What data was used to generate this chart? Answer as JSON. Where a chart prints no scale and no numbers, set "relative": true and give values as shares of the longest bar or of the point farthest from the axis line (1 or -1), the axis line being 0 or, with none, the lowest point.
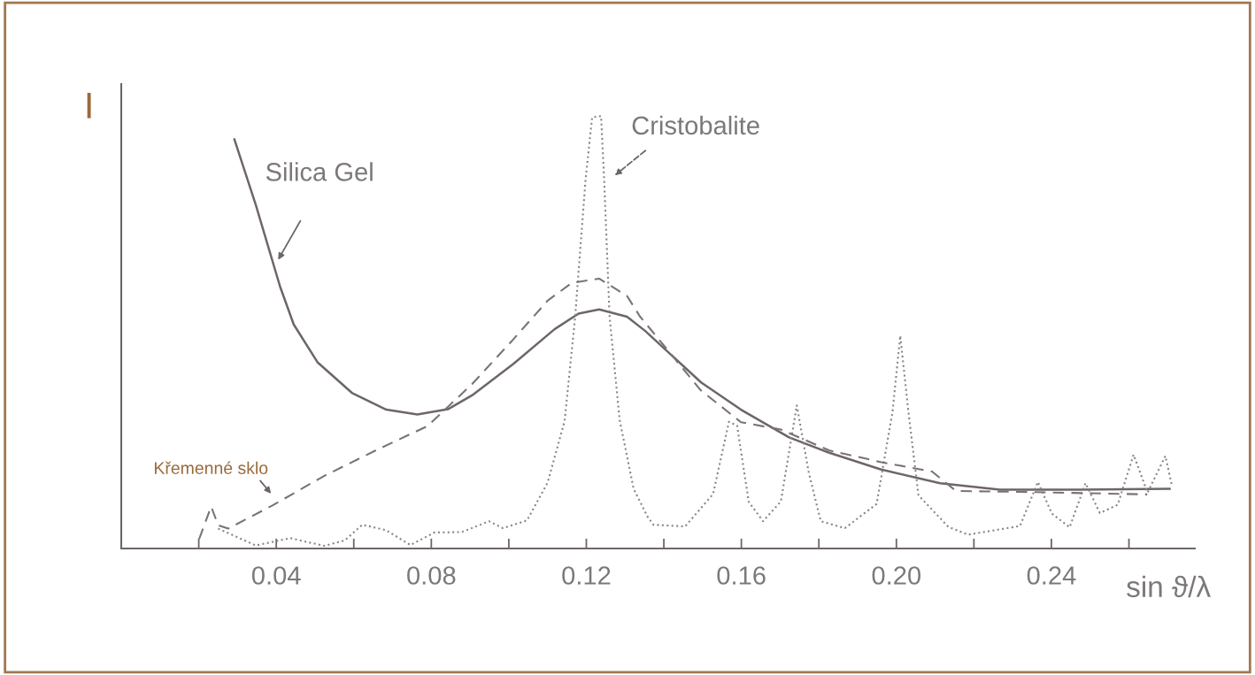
{
  "chart_data": {
    "type": "line",
    "relative": true,
    "ylabel": "I",
    "xlabel": "sin ϑ/λ",
    "xlim": [
      0,
      0.277
    ],
    "xticks": [
      {
        "value": 0.02,
        "label": null
      },
      0.04,
      {
        "value": 0.06,
        "label": null
      },
      0.08,
      {
        "value": 0.1,
        "label": null
      },
      0.12,
      {
        "value": 0.14,
        "label": null
      },
      0.16,
      {
        "value": 0.18,
        "label": null
      },
      {
        "value": 0.2,
        "label": "0.20"
      },
      {
        "value": 0.22,
        "label": null
      },
      0.24,
      {
        "value": 0.26,
        "label": null
      }
    ],
    "grid": false,
    "legend": false,
    "marker": "none",
    "series": [
      {
        "name": "Silica Gel",
        "color": "#6e6666",
        "line_style": "solid",
        "x": [
          0.0292,
          0.0347,
          0.041,
          0.0445,
          0.0507,
          0.0595,
          0.0684,
          0.0764,
          0.0843,
          0.0905,
          0.1012,
          0.1118,
          0.118,
          0.1233,
          0.1305,
          0.1352,
          0.1496,
          0.1599,
          0.1723,
          0.1825,
          0.1959,
          0.2113,
          0.2267,
          0.2473,
          0.2705
        ],
        "values": [
          0.946,
          0.795,
          0.605,
          0.518,
          0.43,
          0.36,
          0.321,
          0.31,
          0.322,
          0.354,
          0.427,
          0.507,
          0.543,
          0.553,
          0.536,
          0.503,
          0.384,
          0.321,
          0.257,
          0.222,
          0.183,
          0.151,
          0.136,
          0.136,
          0.138
        ]
      },
      {
        "name": "Cristobalite",
        "color": "#8a8585",
        "line_style": "dotted",
        "x": [
          0.025,
          0.0347,
          0.0436,
          0.0524,
          0.0577,
          0.0622,
          0.0684,
          0.0746,
          0.0808,
          0.0879,
          0.0949,
          0.0985,
          0.1047,
          0.11,
          0.1144,
          0.1171,
          0.1198,
          0.1215,
          0.1238,
          0.1246,
          0.126,
          0.1286,
          0.1322,
          0.1357,
          0.1373,
          0.1455,
          0.1527,
          0.1568,
          0.1589,
          0.1619,
          0.1656,
          0.1702,
          0.1743,
          0.1774,
          0.1805,
          0.1867,
          0.1949,
          0.199,
          0.201,
          0.2031,
          0.2057,
          0.2134,
          0.2185,
          0.2319,
          0.2365,
          0.2401,
          0.2447,
          0.2488,
          0.2525,
          0.2571,
          0.2612,
          0.2648,
          0.2694,
          0.271
        ],
        "values": [
          0.046,
          0.007,
          0.024,
          0.006,
          0.019,
          0.055,
          0.042,
          0.008,
          0.037,
          0.038,
          0.063,
          0.047,
          0.065,
          0.152,
          0.295,
          0.534,
          0.853,
          0.997,
          1,
          0.853,
          0.535,
          0.297,
          0.138,
          0.075,
          0.055,
          0.051,
          0.126,
          0.293,
          0.284,
          0.108,
          0.063,
          0.109,
          0.331,
          0.175,
          0.063,
          0.047,
          0.103,
          0.316,
          0.492,
          0.316,
          0.123,
          0.05,
          0.032,
          0.052,
          0.154,
          0.081,
          0.049,
          0.151,
          0.082,
          0.101,
          0.217,
          0.129,
          0.214,
          0.149
        ]
      },
      {
        "name": "Křemenné sklo",
        "color": "#7a7373",
        "line_style": "dashed",
        "x": [
          0.0201,
          0.0232,
          0.025,
          0.0276,
          0.0391,
          0.0524,
          0.0657,
          0.079,
          0.0905,
          0.1012,
          0.11,
          0.1162,
          0.1233,
          0.1305,
          0.1338,
          0.1495,
          0.1599,
          0.1702,
          0.1826,
          0.1959,
          0.2092,
          0.2154,
          0.2319,
          0.2545,
          0.2647
        ],
        "values": [
          0.022,
          0.097,
          0.054,
          0.046,
          0.1,
          0.168,
          0.227,
          0.283,
          0.38,
          0.484,
          0.573,
          0.614,
          0.624,
          0.584,
          0.537,
          0.366,
          0.292,
          0.275,
          0.227,
          0.2,
          0.178,
          0.133,
          0.131,
          0.127,
          0.125
        ]
      }
    ]
  }
}
